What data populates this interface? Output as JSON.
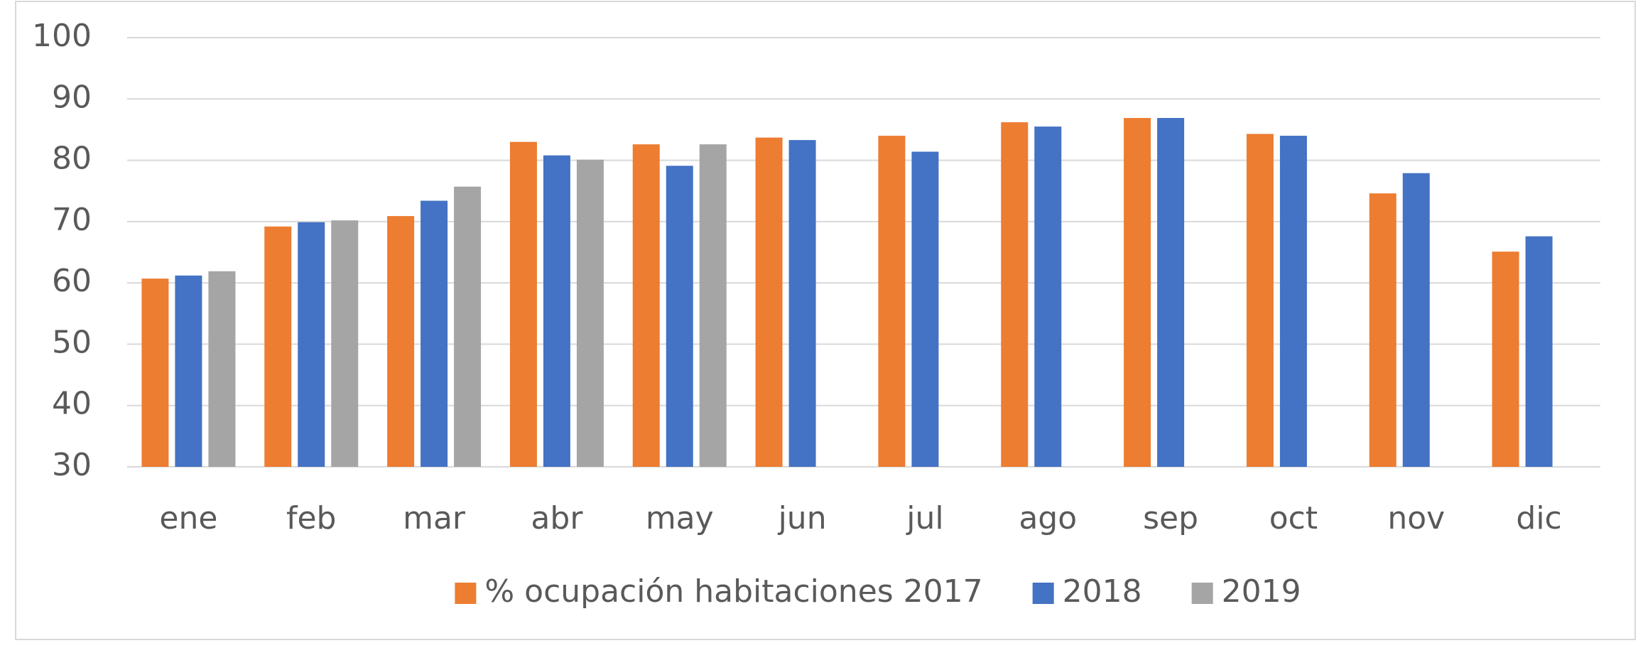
{
  "chart_data": {
    "type": "bar",
    "categories": [
      "ene",
      "feb",
      "mar",
      "abr",
      "may",
      "jun",
      "jul",
      "ago",
      "sep",
      "oct",
      "nov",
      "dic"
    ],
    "series": [
      {
        "name": "% ocupación habitaciones 2017",
        "color": "#ed7d31",
        "values": [
          60.7,
          69.2,
          70.9,
          83.0,
          82.6,
          83.7,
          84.0,
          86.2,
          86.9,
          84.3,
          74.6,
          65.1
        ]
      },
      {
        "name": "2018",
        "color": "#4472c4",
        "values": [
          61.2,
          69.9,
          73.4,
          80.8,
          79.1,
          83.3,
          81.4,
          85.5,
          86.9,
          84.0,
          77.9,
          67.6
        ]
      },
      {
        "name": "2019",
        "color": "#a5a5a5",
        "values": [
          61.9,
          70.2,
          75.7,
          80.1,
          82.6,
          null,
          null,
          null,
          null,
          null,
          null,
          null
        ]
      }
    ],
    "ylim": [
      30,
      100
    ],
    "yticks": [
      30,
      40,
      50,
      60,
      70,
      80,
      90,
      100
    ],
    "grid": true,
    "legend": "bottom"
  }
}
